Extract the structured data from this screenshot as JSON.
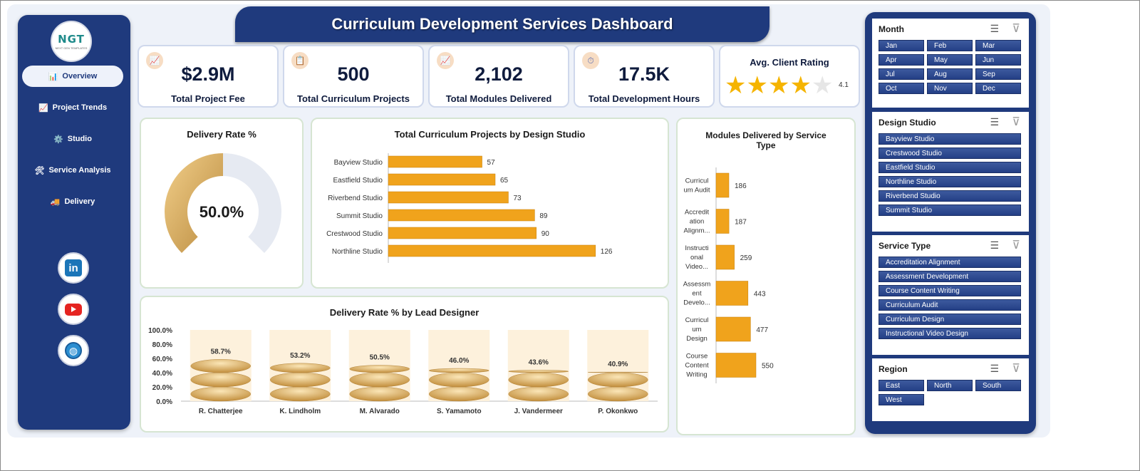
{
  "app": {
    "title": "Curriculum Development Services Dashboard",
    "logo_text": "NGT",
    "logo_sub": "NEXT GEN TEMPLATES"
  },
  "nav": {
    "items": [
      {
        "label": "Overview",
        "icon": "📊",
        "active": true
      },
      {
        "label": "Project Trends",
        "icon": "📈",
        "active": false
      },
      {
        "label": "Studio",
        "icon": "⚙️",
        "active": false
      },
      {
        "label": "Service Analysis",
        "icon": "🛠",
        "active": false
      },
      {
        "label": "Delivery",
        "icon": "🚚",
        "active": false
      }
    ],
    "social": [
      "linkedin-icon",
      "youtube-icon",
      "globe-icon"
    ]
  },
  "kpis": [
    {
      "value": "$2.9M",
      "label": "Total Project Fee",
      "icon": "📈"
    },
    {
      "value": "500",
      "label": "Total Curriculum Projects",
      "icon": "📋"
    },
    {
      "value": "2,102",
      "label": "Total Modules Delivered",
      "icon": "📈"
    },
    {
      "value": "17.5K",
      "label": "Total Development Hours",
      "icon": "⏱"
    }
  ],
  "rating": {
    "title": "Avg. Client Rating",
    "value": "4.1",
    "stars": 4.1
  },
  "delivery_rate": {
    "title": "Delivery Rate %",
    "label": "50.0%",
    "value": 50.0
  },
  "studio_chart_title": "Total Curriculum Projects by Design Studio",
  "service_chart_title": "Modules Delivered by Service Type",
  "designer_chart_title": "Delivery Rate % by Lead Designer",
  "chart_data": [
    {
      "type": "bar",
      "orientation": "horizontal",
      "title": "Total Curriculum Projects by Design Studio",
      "categories": [
        "Bayview Studio",
        "Eastfield Studio",
        "Riverbend Studio",
        "Summit Studio",
        "Crestwood Studio",
        "Northline Studio"
      ],
      "values": [
        57,
        65,
        73,
        89,
        90,
        126
      ],
      "color": "#f0a31c"
    },
    {
      "type": "bar",
      "orientation": "horizontal",
      "title": "Modules Delivered by Service Type",
      "categories": [
        [
          "Curricul",
          "um Audit"
        ],
        [
          "Accredit",
          "ation",
          "Alignm..."
        ],
        [
          "Instructi",
          "onal",
          "Video..."
        ],
        [
          "Assessm",
          "ent",
          "Develo..."
        ],
        [
          "Curricul",
          "um",
          "Design"
        ],
        [
          "Course",
          "Content",
          "Writing"
        ]
      ],
      "values": [
        186,
        187,
        259,
        443,
        477,
        550
      ],
      "color": "#f0a31c"
    },
    {
      "type": "bar",
      "title": "Delivery Rate % by Lead Designer",
      "categories": [
        "R. Chatterjee",
        "K. Lindholm",
        "M. Alvarado",
        "S. Yamamoto",
        "J. Vandermeer",
        "P. Okonkwo"
      ],
      "values": [
        58.7,
        53.2,
        50.5,
        46.0,
        43.6,
        40.9
      ],
      "value_labels": [
        "58.7%",
        "53.2%",
        "50.5%",
        "46.0%",
        "43.6%",
        "40.9%"
      ],
      "y_ticks": [
        "100.0%",
        "80.0%",
        "60.0%",
        "40.0%",
        "20.0%",
        "0.0%"
      ],
      "ylim": [
        0,
        100
      ],
      "color": "#e0b565"
    }
  ],
  "slicers": [
    {
      "title": "Month",
      "items": [
        "Jan",
        "Feb",
        "Mar",
        "Apr",
        "May",
        "Jun",
        "Jul",
        "Aug",
        "Sep",
        "Oct",
        "Nov",
        "Dec"
      ]
    },
    {
      "title": "Design Studio",
      "items": [
        "Bayview Studio",
        "Crestwood Studio",
        "Eastfield Studio",
        "Northline Studio",
        "Riverbend Studio",
        "Summit Studio"
      ]
    },
    {
      "title": "Service Type",
      "items": [
        "Accreditation Alignment",
        "Assessment Development",
        "Course Content Writing",
        "Curriculum Audit",
        "Curriculum Design",
        "Instructional Video Design"
      ]
    },
    {
      "title": "Region",
      "items": [
        "East",
        "North",
        "South",
        "West"
      ]
    }
  ]
}
